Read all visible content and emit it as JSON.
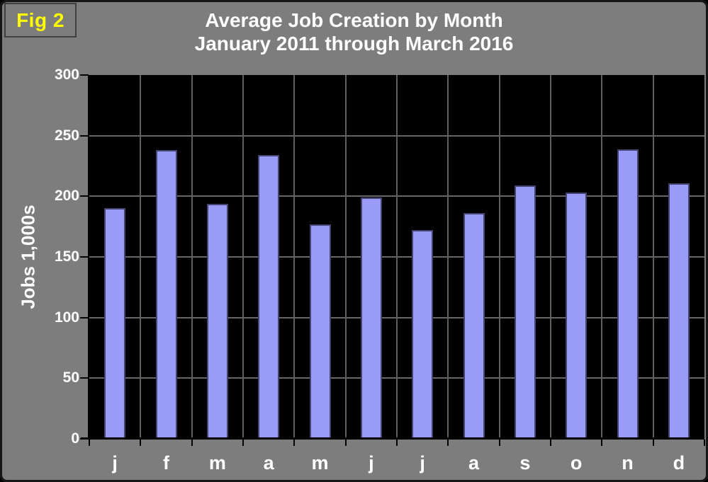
{
  "figure_label": "Fig 2",
  "title": {
    "line1": "Average Job Creation by Month",
    "line2": "January 2011 through March 2016"
  },
  "chart_data": {
    "type": "bar",
    "title": "Average Job Creation by Month January 2011 through March 2016",
    "categories": [
      "j",
      "f",
      "m",
      "a",
      "m",
      "j",
      "j",
      "a",
      "s",
      "o",
      "n",
      "d"
    ],
    "values": [
      190,
      238,
      194,
      234,
      177,
      199,
      172,
      186,
      209,
      203,
      239,
      211
    ],
    "xlabel": "",
    "ylabel": "Jobs 1,000s",
    "ylim": [
      0,
      300
    ],
    "yticks": [
      0,
      50,
      100,
      150,
      200,
      250,
      300
    ],
    "grid": true,
    "legend": false,
    "bar_color": "#9A9AF7",
    "bar_border_color": "#44446E",
    "plot_background": "#000000",
    "gridline_color": "#666666"
  },
  "colors": {
    "page_background": "#7D7D7D",
    "text": "#FFFFFF",
    "figure_label_text": "#FFFF00",
    "figure_box_border": "#3F3F3F",
    "axis": "#000000",
    "outer_border": "#161616"
  }
}
